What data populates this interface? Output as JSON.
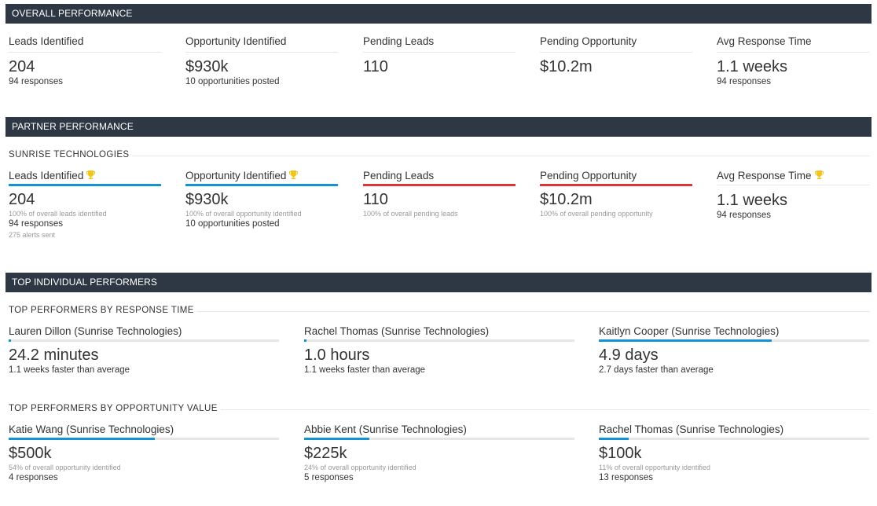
{
  "colors": {
    "header_bg": "#2d3844",
    "accent_blue": "#1493d2",
    "accent_red": "#e03535",
    "trophy": "#f0c419"
  },
  "overall": {
    "title": "OVERALL PERFORMANCE",
    "cards": [
      {
        "label": "Leads Identified",
        "value": "204",
        "sub": "94 responses"
      },
      {
        "label": "Opportunity Identified",
        "value": "$930k",
        "sub": "10 opportunities posted"
      },
      {
        "label": "Pending Leads",
        "value": "110",
        "sub": ""
      },
      {
        "label": "Pending Opportunity",
        "value": "$10.2m",
        "sub": ""
      },
      {
        "label": "Avg Response Time",
        "value": "1.1 weeks",
        "sub": "94 responses"
      }
    ]
  },
  "partner": {
    "title": "PARTNER PERFORMANCE",
    "company": "SUNRISE TECHNOLOGIES",
    "cards": [
      {
        "label": "Leads Identified",
        "trophy": true,
        "bar": "blue",
        "value": "204",
        "tiny": "100% of overall leads identified",
        "sub": "94 responses",
        "tiny2": "275 alerts sent"
      },
      {
        "label": "Opportunity Identified",
        "trophy": true,
        "bar": "blue",
        "value": "$930k",
        "tiny": "100% of overall opportunity identified",
        "sub": "10 opportunities posted",
        "tiny2": ""
      },
      {
        "label": "Pending Leads",
        "trophy": false,
        "bar": "red",
        "value": "110",
        "tiny": "100% of overall pending leads",
        "sub": "",
        "tiny2": ""
      },
      {
        "label": "Pending Opportunity",
        "trophy": false,
        "bar": "red",
        "value": "$10.2m",
        "tiny": "100% of overall pending opportunity",
        "sub": "",
        "tiny2": ""
      },
      {
        "label": "Avg Response Time",
        "trophy": true,
        "bar": "plain",
        "value": "1.1 weeks",
        "tiny": "",
        "sub": "94 responses",
        "tiny2": ""
      }
    ]
  },
  "individual": {
    "title": "TOP INDIVIDUAL PERFORMERS",
    "response": {
      "title": "TOP PERFORMERS BY RESPONSE TIME",
      "items": [
        {
          "name": "Lauren Dillon (Sunrise Technologies)",
          "value": "24.2 minutes",
          "sub": "1.1 weeks faster than average",
          "progress": 0.01
        },
        {
          "name": "Rachel Thomas (Sunrise Technologies)",
          "value": "1.0 hours",
          "sub": "1.1 weeks faster than average",
          "progress": 0.01
        },
        {
          "name": "Kaitlyn Cooper (Sunrise Technologies)",
          "value": "4.9 days",
          "sub": "2.7 days faster than average",
          "progress": 0.64
        }
      ]
    },
    "opportunity": {
      "title": "TOP PERFORMERS BY OPPORTUNITY VALUE",
      "items": [
        {
          "name": "Katie Wang (Sunrise Technologies)",
          "value": "$500k",
          "tiny": "54% of overall opportunity identified",
          "sub": "4 responses",
          "progress": 0.54
        },
        {
          "name": "Abbie Kent (Sunrise Technologies)",
          "value": "$225k",
          "tiny": "24% of overall opportunity identified",
          "sub": "5 responses",
          "progress": 0.24
        },
        {
          "name": "Rachel Thomas (Sunrise Technologies)",
          "value": "$100k",
          "tiny": "11% of overall opportunity identified",
          "sub": "13 responses",
          "progress": 0.11
        }
      ]
    }
  }
}
